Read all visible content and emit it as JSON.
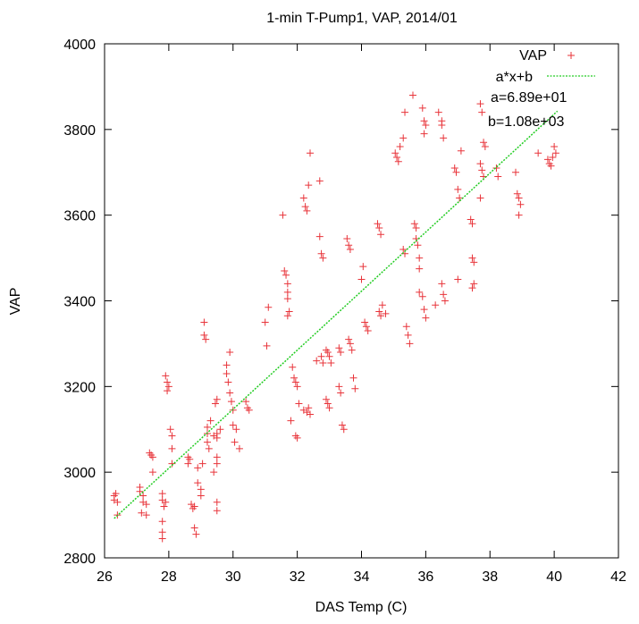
{
  "chart_data": {
    "type": "scatter",
    "title": "1-min T-Pump1, VAP, 2014/01",
    "xlabel": "DAS Temp (C)",
    "ylabel": "VAP",
    "xlim": [
      26,
      42
    ],
    "ylim": [
      2800,
      4000
    ],
    "xticks": [
      "26",
      "28",
      "30",
      "32",
      "34",
      "36",
      "38",
      "40",
      "42"
    ],
    "yticks": [
      "2800",
      "3000",
      "3200",
      "3400",
      "3600",
      "3800",
      "4000"
    ],
    "grid": false,
    "legend_position": "top-right",
    "fit": {
      "a": 68.9,
      "b": 1080,
      "x_range": [
        26.3,
        40.1
      ]
    },
    "legend": {
      "series_label": "VAP",
      "fit_label": "a*x+b",
      "a_text": "a=6.89e+01",
      "b_text": "b=1.08e+03"
    },
    "colors": {
      "points": "#e8343a",
      "fit": "#22cc22",
      "axis": "#000000"
    },
    "series": [
      {
        "name": "VAP",
        "points": [
          [
            26.3,
            2945
          ],
          [
            26.3,
            2935
          ],
          [
            26.35,
            2950
          ],
          [
            26.4,
            2930
          ],
          [
            26.4,
            2900
          ],
          [
            27.1,
            2965
          ],
          [
            27.1,
            2955
          ],
          [
            27.15,
            2905
          ],
          [
            27.2,
            2945
          ],
          [
            27.2,
            2930
          ],
          [
            27.3,
            2925
          ],
          [
            27.3,
            2900
          ],
          [
            27.4,
            3045
          ],
          [
            27.45,
            3040
          ],
          [
            27.5,
            3035
          ],
          [
            27.5,
            3000
          ],
          [
            27.8,
            2950
          ],
          [
            27.8,
            2935
          ],
          [
            27.85,
            2920
          ],
          [
            27.8,
            2885
          ],
          [
            27.8,
            2860
          ],
          [
            27.8,
            2845
          ],
          [
            27.9,
            2930
          ],
          [
            27.9,
            3225
          ],
          [
            27.95,
            3210
          ],
          [
            28.0,
            3200
          ],
          [
            27.95,
            3190
          ],
          [
            28.05,
            3100
          ],
          [
            28.1,
            3085
          ],
          [
            28.1,
            3055
          ],
          [
            28.1,
            3020
          ],
          [
            28.6,
            3035
          ],
          [
            28.6,
            3020
          ],
          [
            28.65,
            3030
          ],
          [
            28.7,
            2925
          ],
          [
            28.75,
            2915
          ],
          [
            28.8,
            2920
          ],
          [
            28.8,
            2870
          ],
          [
            28.85,
            2855
          ],
          [
            28.9,
            3010
          ],
          [
            28.9,
            2975
          ],
          [
            29.0,
            2960
          ],
          [
            29.0,
            2945
          ],
          [
            29.05,
            3020
          ],
          [
            29.1,
            3350
          ],
          [
            29.1,
            3320
          ],
          [
            29.15,
            3310
          ],
          [
            29.2,
            3105
          ],
          [
            29.2,
            3090
          ],
          [
            29.2,
            3070
          ],
          [
            29.25,
            3055
          ],
          [
            29.3,
            3120
          ],
          [
            29.4,
            3000
          ],
          [
            29.4,
            3085
          ],
          [
            29.45,
            3160
          ],
          [
            29.5,
            3170
          ],
          [
            29.5,
            3090
          ],
          [
            29.5,
            3080
          ],
          [
            29.5,
            3035
          ],
          [
            29.5,
            3020
          ],
          [
            29.5,
            2930
          ],
          [
            29.5,
            2910
          ],
          [
            29.6,
            3100
          ],
          [
            29.8,
            3250
          ],
          [
            29.8,
            3230
          ],
          [
            29.85,
            3210
          ],
          [
            29.9,
            3280
          ],
          [
            29.9,
            3185
          ],
          [
            29.95,
            3165
          ],
          [
            30.0,
            3145
          ],
          [
            30.0,
            3110
          ],
          [
            30.05,
            3070
          ],
          [
            30.1,
            3100
          ],
          [
            30.2,
            3055
          ],
          [
            30.4,
            3165
          ],
          [
            30.45,
            3150
          ],
          [
            30.5,
            3145
          ],
          [
            31.0,
            3350
          ],
          [
            31.05,
            3295
          ],
          [
            31.1,
            3385
          ],
          [
            31.55,
            3600
          ],
          [
            31.6,
            3470
          ],
          [
            31.65,
            3460
          ],
          [
            31.7,
            3440
          ],
          [
            31.7,
            3420
          ],
          [
            31.7,
            3405
          ],
          [
            31.75,
            3375
          ],
          [
            31.7,
            3365
          ],
          [
            31.85,
            3245
          ],
          [
            31.9,
            3220
          ],
          [
            31.95,
            3210
          ],
          [
            32.0,
            3200
          ],
          [
            31.95,
            3085
          ],
          [
            32.0,
            3080
          ],
          [
            32.05,
            3160
          ],
          [
            31.8,
            3120
          ],
          [
            32.2,
            3640
          ],
          [
            32.25,
            3620
          ],
          [
            32.3,
            3610
          ],
          [
            32.35,
            3670
          ],
          [
            32.4,
            3745
          ],
          [
            32.2,
            3145
          ],
          [
            32.3,
            3140
          ],
          [
            32.35,
            3150
          ],
          [
            32.4,
            3135
          ],
          [
            32.7,
            3680
          ],
          [
            32.7,
            3550
          ],
          [
            32.75,
            3510
          ],
          [
            32.8,
            3500
          ],
          [
            32.6,
            3260
          ],
          [
            32.75,
            3270
          ],
          [
            32.8,
            3255
          ],
          [
            32.9,
            3285
          ],
          [
            32.95,
            3280
          ],
          [
            33.0,
            3270
          ],
          [
            33.05,
            3255
          ],
          [
            32.9,
            3170
          ],
          [
            32.95,
            3160
          ],
          [
            33.0,
            3150
          ],
          [
            33.3,
            3290
          ],
          [
            33.35,
            3280
          ],
          [
            33.3,
            3200
          ],
          [
            33.35,
            3185
          ],
          [
            33.4,
            3110
          ],
          [
            33.45,
            3100
          ],
          [
            33.55,
            3545
          ],
          [
            33.6,
            3530
          ],
          [
            33.65,
            3520
          ],
          [
            33.6,
            3310
          ],
          [
            33.65,
            3300
          ],
          [
            33.7,
            3285
          ],
          [
            33.75,
            3220
          ],
          [
            33.8,
            3195
          ],
          [
            34.0,
            3450
          ],
          [
            34.1,
            3350
          ],
          [
            34.15,
            3340
          ],
          [
            34.2,
            3330
          ],
          [
            34.05,
            3480
          ],
          [
            34.5,
            3580
          ],
          [
            34.55,
            3570
          ],
          [
            34.6,
            3555
          ],
          [
            34.55,
            3375
          ],
          [
            34.6,
            3365
          ],
          [
            34.65,
            3390
          ],
          [
            34.75,
            3370
          ],
          [
            35.05,
            3745
          ],
          [
            35.1,
            3735
          ],
          [
            35.15,
            3725
          ],
          [
            35.2,
            3760
          ],
          [
            35.3,
            3780
          ],
          [
            35.35,
            3840
          ],
          [
            35.3,
            3520
          ],
          [
            35.35,
            3510
          ],
          [
            35.4,
            3340
          ],
          [
            35.45,
            3320
          ],
          [
            35.5,
            3300
          ],
          [
            35.6,
            3880
          ],
          [
            35.65,
            3580
          ],
          [
            35.7,
            3570
          ],
          [
            35.7,
            3545
          ],
          [
            35.75,
            3530
          ],
          [
            35.8,
            3500
          ],
          [
            35.8,
            3475
          ],
          [
            35.8,
            3420
          ],
          [
            35.9,
            3850
          ],
          [
            35.95,
            3820
          ],
          [
            36.0,
            3810
          ],
          [
            35.95,
            3790
          ],
          [
            35.9,
            3410
          ],
          [
            35.95,
            3380
          ],
          [
            36.0,
            3360
          ],
          [
            36.3,
            3390
          ],
          [
            36.4,
            3840
          ],
          [
            36.5,
            3820
          ],
          [
            36.5,
            3810
          ],
          [
            36.55,
            3780
          ],
          [
            36.5,
            3440
          ],
          [
            36.55,
            3415
          ],
          [
            36.6,
            3400
          ],
          [
            36.9,
            3710
          ],
          [
            36.95,
            3700
          ],
          [
            37.0,
            3660
          ],
          [
            37.05,
            3640
          ],
          [
            37.1,
            3750
          ],
          [
            37.0,
            3450
          ],
          [
            37.4,
            3590
          ],
          [
            37.45,
            3580
          ],
          [
            37.45,
            3500
          ],
          [
            37.5,
            3490
          ],
          [
            37.5,
            3440
          ],
          [
            37.45,
            3430
          ],
          [
            37.7,
            3860
          ],
          [
            37.75,
            3840
          ],
          [
            37.8,
            3770
          ],
          [
            37.85,
            3760
          ],
          [
            37.7,
            3720
          ],
          [
            37.75,
            3705
          ],
          [
            37.8,
            3690
          ],
          [
            37.7,
            3640
          ],
          [
            38.2,
            3710
          ],
          [
            38.25,
            3690
          ],
          [
            38.8,
            3700
          ],
          [
            38.85,
            3650
          ],
          [
            38.9,
            3640
          ],
          [
            38.95,
            3625
          ],
          [
            38.9,
            3600
          ],
          [
            39.5,
            3745
          ],
          [
            39.8,
            3730
          ],
          [
            39.85,
            3720
          ],
          [
            39.9,
            3715
          ],
          [
            39.95,
            3735
          ],
          [
            40.0,
            3760
          ],
          [
            40.05,
            3745
          ]
        ]
      }
    ]
  }
}
